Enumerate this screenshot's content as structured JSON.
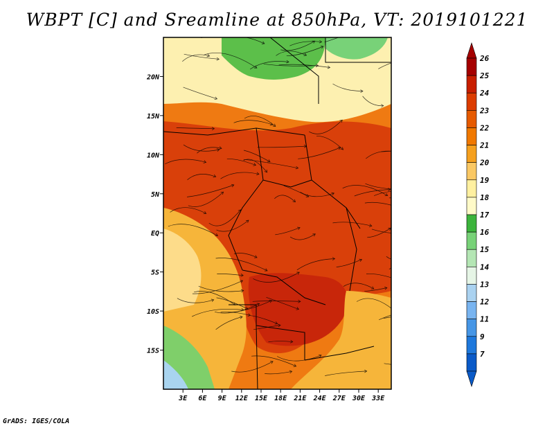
{
  "title": "WBPT [C] and Sreamline at 850hPa, VT: 2019101221",
  "credit": "GrADS: IGES/COLA",
  "map": {
    "lat_labels": [
      "20N",
      "15N",
      "10N",
      "5N",
      "EQ",
      "5S",
      "10S",
      "15S"
    ],
    "lat_values": [
      20,
      15,
      10,
      5,
      0,
      -5,
      -10,
      -15
    ],
    "lon_labels": [
      "3E",
      "6E",
      "9E",
      "12E",
      "15E",
      "18E",
      "21E",
      "24E",
      "27E",
      "30E",
      "33E"
    ],
    "lon_values": [
      3,
      6,
      9,
      12,
      15,
      18,
      21,
      24,
      27,
      30,
      33
    ],
    "lon_range": [
      0,
      35
    ],
    "lat_range": [
      -20,
      25
    ]
  },
  "colorbar": {
    "labels": [
      "26",
      "25",
      "24",
      "23",
      "22",
      "21",
      "20",
      "19",
      "18",
      "17",
      "16",
      "15",
      "14",
      "13",
      "12",
      "11",
      "9",
      "7"
    ],
    "colors": [
      "#a50000",
      "#c81e00",
      "#dc3c00",
      "#e65a00",
      "#f07800",
      "#f5a01e",
      "#fac864",
      "#fff0a0",
      "#fffac8",
      "#3cb43c",
      "#78d278",
      "#b4e6b4",
      "#e6f5e6",
      "#aad2f0",
      "#78b4f0",
      "#4696e6",
      "#1e78dc",
      "#0a5ac8"
    ]
  },
  "fields": {
    "wbpt_zones": [
      {
        "name": "green-north",
        "color": "#5cbf4a"
      },
      {
        "name": "pale-north",
        "color": "#fdf0b0"
      },
      {
        "name": "orange-belt",
        "color": "#ef7a12"
      },
      {
        "name": "red-core",
        "color": "#d9400a"
      },
      {
        "name": "deep-red-south",
        "color": "#c8260a"
      },
      {
        "name": "yellow-west",
        "color": "#f6b53a"
      },
      {
        "name": "green-southwest",
        "color": "#7fcf6a"
      },
      {
        "name": "blue-southwest",
        "color": "#a9d4ef"
      }
    ]
  }
}
